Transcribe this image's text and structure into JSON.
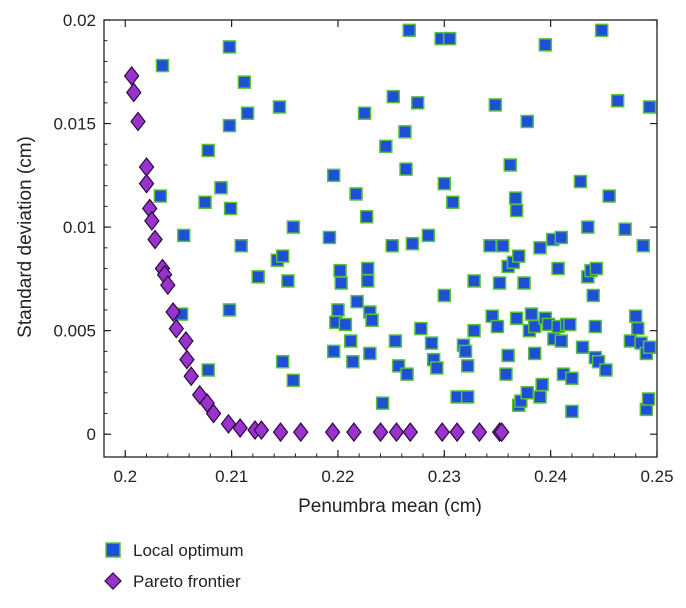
{
  "chart_data": {
    "type": "scatter",
    "xlabel": "Penumbra mean (cm)",
    "ylabel": "Standard deviation (cm)",
    "xlim": [
      0.198,
      0.25
    ],
    "ylim": [
      -0.0011,
      0.02
    ],
    "xticks": [
      0.2,
      0.21,
      0.22,
      0.23,
      0.24,
      0.25
    ],
    "xtick_labels": [
      "0.2",
      "0.21",
      "0.22",
      "0.23",
      "0.24",
      "0.25"
    ],
    "yticks": [
      0,
      0.005,
      0.01,
      0.015,
      0.02
    ],
    "ytick_labels": [
      "0",
      "0.005",
      "0.01",
      "0.015",
      "0.02"
    ],
    "grid": false,
    "legend_position": "bottom-left, below plot",
    "colors": {
      "local_fill": "#1f4fd6",
      "local_edge": "#58c23a",
      "pareto_fill": "#9933cc",
      "pareto_edge": "#2a0a40",
      "axis": "#222222"
    },
    "series": [
      {
        "name": "Local optimum",
        "marker": "square",
        "points": [
          [
            0.2035,
            0.0178
          ],
          [
            0.2033,
            0.0115
          ],
          [
            0.2053,
            0.0058
          ],
          [
            0.2055,
            0.0096
          ],
          [
            0.2075,
            0.0112
          ],
          [
            0.2078,
            0.0137
          ],
          [
            0.2078,
            0.0031
          ],
          [
            0.209,
            0.0119
          ],
          [
            0.2098,
            0.0187
          ],
          [
            0.2098,
            0.0149
          ],
          [
            0.2099,
            0.0109
          ],
          [
            0.2098,
            0.006
          ],
          [
            0.2109,
            0.0091
          ],
          [
            0.2112,
            0.017
          ],
          [
            0.2115,
            0.0155
          ],
          [
            0.2125,
            0.0076
          ],
          [
            0.2145,
            0.0158
          ],
          [
            0.2143,
            0.0084
          ],
          [
            0.2148,
            0.0086
          ],
          [
            0.2153,
            0.0074
          ],
          [
            0.2158,
            0.01
          ],
          [
            0.2148,
            0.0035
          ],
          [
            0.2158,
            0.0026
          ],
          [
            0.2192,
            0.0095
          ],
          [
            0.2196,
            0.0125
          ],
          [
            0.2202,
            0.0079
          ],
          [
            0.2203,
            0.0073
          ],
          [
            0.22,
            0.006
          ],
          [
            0.2198,
            0.0054
          ],
          [
            0.2196,
            0.004
          ],
          [
            0.2207,
            0.0053
          ],
          [
            0.2212,
            0.0045
          ],
          [
            0.2214,
            0.0035
          ],
          [
            0.2218,
            0.0064
          ],
          [
            0.2217,
            0.0116
          ],
          [
            0.2225,
            0.0155
          ],
          [
            0.2227,
            0.0105
          ],
          [
            0.2228,
            0.008
          ],
          [
            0.2228,
            0.0074
          ],
          [
            0.223,
            0.0059
          ],
          [
            0.2232,
            0.0055
          ],
          [
            0.223,
            0.0039
          ],
          [
            0.2242,
            0.0015
          ],
          [
            0.2245,
            0.0139
          ],
          [
            0.2252,
            0.0163
          ],
          [
            0.2251,
            0.0091
          ],
          [
            0.2254,
            0.0045
          ],
          [
            0.2257,
            0.0033
          ],
          [
            0.2263,
            0.0146
          ],
          [
            0.2264,
            0.0128
          ],
          [
            0.2265,
            0.0029
          ],
          [
            0.2267,
            0.0195
          ],
          [
            0.227,
            0.0092
          ],
          [
            0.2275,
            0.016
          ],
          [
            0.2278,
            0.0051
          ],
          [
            0.2285,
            0.0096
          ],
          [
            0.2288,
            0.0044
          ],
          [
            0.229,
            0.0036
          ],
          [
            0.2293,
            0.0032
          ],
          [
            0.2297,
            0.0191
          ],
          [
            0.23,
            0.0121
          ],
          [
            0.23,
            0.0067
          ],
          [
            0.2305,
            0.0191
          ],
          [
            0.2308,
            0.0112
          ],
          [
            0.2312,
            0.0018
          ],
          [
            0.2318,
            0.0043
          ],
          [
            0.232,
            0.004
          ],
          [
            0.2322,
            0.0033
          ],
          [
            0.2322,
            0.0018
          ],
          [
            0.2328,
            0.005
          ],
          [
            0.2328,
            0.0074
          ],
          [
            0.2343,
            0.0091
          ],
          [
            0.2345,
            0.0057
          ],
          [
            0.2348,
            0.0159
          ],
          [
            0.235,
            0.0052
          ],
          [
            0.2352,
            0.0073
          ],
          [
            0.2355,
            0.0091
          ],
          [
            0.2358,
            0.0029
          ],
          [
            0.236,
            0.0038
          ],
          [
            0.236,
            0.0081
          ],
          [
            0.2362,
            0.013
          ],
          [
            0.2365,
            0.0083
          ],
          [
            0.2367,
            0.0114
          ],
          [
            0.2368,
            0.0108
          ],
          [
            0.2368,
            0.0056
          ],
          [
            0.237,
            0.0086
          ],
          [
            0.237,
            0.0014
          ],
          [
            0.2372,
            0.0016
          ],
          [
            0.2375,
            0.0073
          ],
          [
            0.2378,
            0.0151
          ],
          [
            0.2378,
            0.002
          ],
          [
            0.238,
            0.005
          ],
          [
            0.2382,
            0.0058
          ],
          [
            0.2385,
            0.0052
          ],
          [
            0.2385,
            0.0039
          ],
          [
            0.239,
            0.009
          ],
          [
            0.239,
            0.0018
          ],
          [
            0.2392,
            0.0024
          ],
          [
            0.2395,
            0.0188
          ],
          [
            0.2395,
            0.0056
          ],
          [
            0.2398,
            0.0053
          ],
          [
            0.2402,
            0.0094
          ],
          [
            0.2403,
            0.0046
          ],
          [
            0.2407,
            0.008
          ],
          [
            0.2407,
            0.0052
          ],
          [
            0.241,
            0.0095
          ],
          [
            0.241,
            0.0045
          ],
          [
            0.2412,
            0.0029
          ],
          [
            0.2415,
            0.0053
          ],
          [
            0.2418,
            0.0053
          ],
          [
            0.242,
            0.0011
          ],
          [
            0.242,
            0.0027
          ],
          [
            0.2428,
            0.0122
          ],
          [
            0.243,
            0.0042
          ],
          [
            0.2435,
            0.0076
          ],
          [
            0.2435,
            0.01
          ],
          [
            0.2438,
            0.0079
          ],
          [
            0.244,
            0.0067
          ],
          [
            0.2442,
            0.0052
          ],
          [
            0.2442,
            0.0037
          ],
          [
            0.2443,
            0.008
          ],
          [
            0.2445,
            0.0035
          ],
          [
            0.2448,
            0.0195
          ],
          [
            0.2452,
            0.0031
          ],
          [
            0.2455,
            0.0115
          ],
          [
            0.2463,
            0.0161
          ],
          [
            0.247,
            0.0099
          ],
          [
            0.2475,
            0.0045
          ],
          [
            0.248,
            0.0057
          ],
          [
            0.2482,
            0.0051
          ],
          [
            0.2485,
            0.0044
          ],
          [
            0.2487,
            0.0091
          ],
          [
            0.249,
            0.0039
          ],
          [
            0.249,
            0.0012
          ],
          [
            0.2492,
            0.0017
          ],
          [
            0.2493,
            0.0042
          ],
          [
            0.2493,
            0.0158
          ]
        ]
      },
      {
        "name": "Pareto frontier",
        "marker": "diamond",
        "points": [
          [
            0.2006,
            0.0173
          ],
          [
            0.2008,
            0.0165
          ],
          [
            0.2012,
            0.0151
          ],
          [
            0.202,
            0.0129
          ],
          [
            0.202,
            0.0121
          ],
          [
            0.2023,
            0.0109
          ],
          [
            0.2025,
            0.0103
          ],
          [
            0.2028,
            0.0094
          ],
          [
            0.2035,
            0.008
          ],
          [
            0.2037,
            0.0077
          ],
          [
            0.204,
            0.0072
          ],
          [
            0.2045,
            0.0059
          ],
          [
            0.2048,
            0.0051
          ],
          [
            0.2057,
            0.0045
          ],
          [
            0.2058,
            0.0036
          ],
          [
            0.2062,
            0.0028
          ],
          [
            0.207,
            0.0019
          ],
          [
            0.2077,
            0.0015
          ],
          [
            0.2083,
            0.001
          ],
          [
            0.2097,
            0.0005
          ],
          [
            0.2108,
            0.0003
          ],
          [
            0.2122,
            0.0002
          ],
          [
            0.2128,
            0.0002
          ],
          [
            0.2146,
            0.0001
          ],
          [
            0.2165,
            0.0001
          ],
          [
            0.2195,
            0.0001
          ],
          [
            0.2215,
            0.0001
          ],
          [
            0.224,
            0.0001
          ],
          [
            0.2255,
            0.0001
          ],
          [
            0.2268,
            0.0001
          ],
          [
            0.2298,
            0.0001
          ],
          [
            0.2312,
            0.0001
          ],
          [
            0.2333,
            0.0001
          ],
          [
            0.2352,
            0.0001
          ],
          [
            0.2354,
            0.0001
          ]
        ]
      }
    ]
  },
  "legend": {
    "items": [
      {
        "label": "Local optimum"
      },
      {
        "label": "Pareto frontier"
      }
    ]
  }
}
